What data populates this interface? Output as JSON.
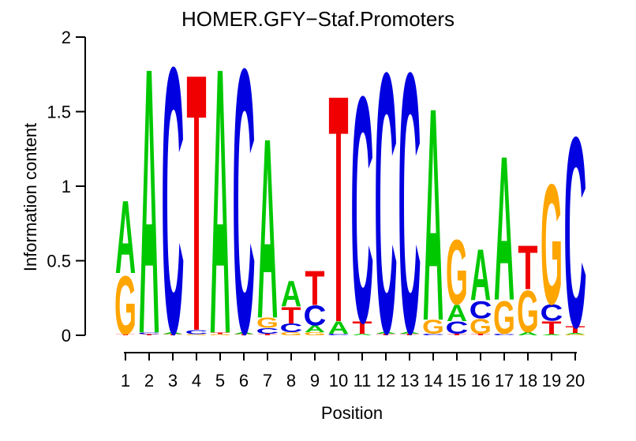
{
  "chart_data": {
    "type": "sequence-logo",
    "title": "HOMER.GFY−Staf.Promoters",
    "xlabel": "Position",
    "ylabel": "Information content",
    "ylim": [
      0,
      2
    ],
    "yticks": [
      0,
      0.5,
      1,
      1.5,
      2
    ],
    "ytick_labels": [
      "0",
      "0.5",
      "1",
      "1.5",
      "2"
    ],
    "legend": "none",
    "grid": "off",
    "base_colors": {
      "A": "#00C800",
      "C": "#0000E0",
      "G": "#FFA500",
      "T": "#F00000"
    },
    "stacks": [
      {
        "pos": "1",
        "letters": [
          {
            "base": "T",
            "ic": 0.008
          },
          {
            "base": "G",
            "ic": 0.41
          },
          {
            "base": "A",
            "ic": 0.51
          }
        ]
      },
      {
        "pos": "2",
        "letters": [
          {
            "base": "T",
            "ic": 0.008
          },
          {
            "base": "C",
            "ic": 0.012
          },
          {
            "base": "A",
            "ic": 1.86
          }
        ]
      },
      {
        "pos": "3",
        "letters": [
          {
            "base": "T",
            "ic": 0.008
          },
          {
            "base": "A",
            "ic": 0.015
          },
          {
            "base": "C",
            "ic": 1.86
          }
        ]
      },
      {
        "pos": "4",
        "letters": [
          {
            "base": "G",
            "ic": 0.008
          },
          {
            "base": "C",
            "ic": 0.03
          },
          {
            "base": "T",
            "ic": 1.8
          }
        ]
      },
      {
        "pos": "5",
        "letters": [
          {
            "base": "G",
            "ic": 0.008
          },
          {
            "base": "T",
            "ic": 0.012
          },
          {
            "base": "A",
            "ic": 1.86
          }
        ]
      },
      {
        "pos": "6",
        "letters": [
          {
            "base": "T",
            "ic": 0.008
          },
          {
            "base": "A",
            "ic": 0.015
          },
          {
            "base": "C",
            "ic": 1.85
          }
        ]
      },
      {
        "pos": "7",
        "letters": [
          {
            "base": "T",
            "ic": 0.01
          },
          {
            "base": "C",
            "ic": 0.04
          },
          {
            "base": "G",
            "ic": 0.07
          },
          {
            "base": "A",
            "ic": 1.26
          }
        ]
      },
      {
        "pos": "8",
        "letters": [
          {
            "base": "G",
            "ic": 0.02
          },
          {
            "base": "C",
            "ic": 0.06
          },
          {
            "base": "T",
            "ic": 0.115
          },
          {
            "base": "A",
            "ic": 0.18
          }
        ]
      },
      {
        "pos": "9",
        "letters": [
          {
            "base": "G",
            "ic": 0.02
          },
          {
            "base": "A",
            "ic": 0.045
          },
          {
            "base": "C",
            "ic": 0.14
          },
          {
            "base": "T",
            "ic": 0.24
          }
        ]
      },
      {
        "pos": "10",
        "letters": [
          {
            "base": "C",
            "ic": 0.01
          },
          {
            "base": "A",
            "ic": 0.085
          },
          {
            "base": "T",
            "ic": 1.59
          }
        ]
      },
      {
        "pos": "11",
        "letters": [
          {
            "base": "A",
            "ic": 0.01
          },
          {
            "base": "T",
            "ic": 0.085
          },
          {
            "base": "C",
            "ic": 1.58
          }
        ]
      },
      {
        "pos": "12",
        "letters": [
          {
            "base": "T",
            "ic": 0.01
          },
          {
            "base": "A",
            "ic": 0.015
          },
          {
            "base": "C",
            "ic": 1.82
          }
        ]
      },
      {
        "pos": "13",
        "letters": [
          {
            "base": "T",
            "ic": 0.01
          },
          {
            "base": "A",
            "ic": 0.015
          },
          {
            "base": "C",
            "ic": 1.82
          }
        ]
      },
      {
        "pos": "14",
        "letters": [
          {
            "base": "C",
            "ic": 0.01
          },
          {
            "base": "G",
            "ic": 0.095
          },
          {
            "base": "A",
            "ic": 1.49
          }
        ]
      },
      {
        "pos": "15",
        "letters": [
          {
            "base": "T",
            "ic": 0.01
          },
          {
            "base": "C",
            "ic": 0.085
          },
          {
            "base": "A",
            "ic": 0.115
          },
          {
            "base": "G",
            "ic": 0.45
          }
        ]
      },
      {
        "pos": "16",
        "letters": [
          {
            "base": "T",
            "ic": 0.01
          },
          {
            "base": "G",
            "ic": 0.105
          },
          {
            "base": "C",
            "ic": 0.12
          },
          {
            "base": "A",
            "ic": 0.36
          }
        ]
      },
      {
        "pos": "17",
        "letters": [
          {
            "base": "C",
            "ic": 0.01
          },
          {
            "base": "G",
            "ic": 0.23
          },
          {
            "base": "A",
            "ic": 1.01
          }
        ]
      },
      {
        "pos": "18",
        "letters": [
          {
            "base": "A",
            "ic": 0.02
          },
          {
            "base": "G",
            "ic": 0.29
          },
          {
            "base": "T",
            "ic": 0.31
          }
        ]
      },
      {
        "pos": "19",
        "letters": [
          {
            "base": "A",
            "ic": 0.008
          },
          {
            "base": "T",
            "ic": 0.09
          },
          {
            "base": "C",
            "ic": 0.115
          },
          {
            "base": "G",
            "ic": 0.84
          }
        ]
      },
      {
        "pos": "20",
        "letters": [
          {
            "base": "G",
            "ic": 0.008
          },
          {
            "base": "A",
            "ic": 0.008
          },
          {
            "base": "T",
            "ic": 0.045
          },
          {
            "base": "C",
            "ic": 1.33
          }
        ]
      }
    ]
  }
}
